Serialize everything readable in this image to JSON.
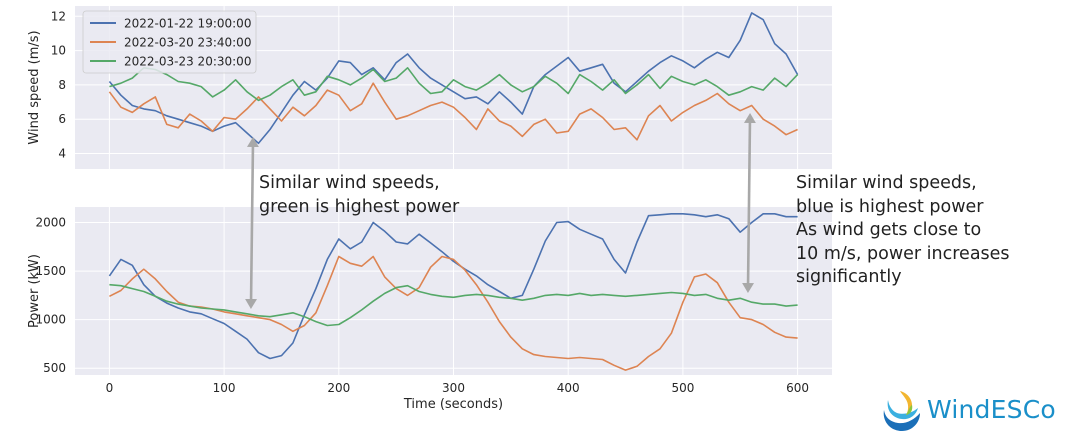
{
  "chart_data": [
    {
      "type": "line",
      "panel": "top",
      "xlabel": "",
      "ylabel": "Wind speed (m/s)",
      "xlim": [
        -30,
        630
      ],
      "ylim": [
        3.1,
        12.6
      ],
      "yticks": [
        4,
        6,
        8,
        10,
        12
      ],
      "grid": true,
      "legend": "top-left",
      "series": [
        {
          "name": "2022-01-22 19:00:00",
          "color": "#4c72b0",
          "x": [
            0,
            10,
            20,
            30,
            40,
            50,
            60,
            70,
            80,
            90,
            100,
            110,
            120,
            130,
            140,
            150,
            160,
            170,
            180,
            190,
            200,
            210,
            220,
            230,
            240,
            250,
            260,
            270,
            280,
            290,
            300,
            310,
            320,
            330,
            340,
            350,
            360,
            370,
            380,
            390,
            400,
            410,
            420,
            430,
            440,
            450,
            460,
            470,
            480,
            490,
            500,
            510,
            520,
            530,
            540,
            550,
            560,
            570,
            580,
            590,
            600
          ],
          "y": [
            8.2,
            7.4,
            6.8,
            6.6,
            6.5,
            6.2,
            6.0,
            5.8,
            5.6,
            5.3,
            5.6,
            5.8,
            5.2,
            4.6,
            5.4,
            6.4,
            7.4,
            8.2,
            7.7,
            8.4,
            9.4,
            9.3,
            8.6,
            9.0,
            8.3,
            9.3,
            9.8,
            9.0,
            8.4,
            8.0,
            7.6,
            7.2,
            7.3,
            6.9,
            7.6,
            7.0,
            6.3,
            7.9,
            8.6,
            9.1,
            9.6,
            8.8,
            9.0,
            9.2,
            8.1,
            7.6,
            8.2,
            8.8,
            9.3,
            9.7,
            9.4,
            9.0,
            9.5,
            9.9,
            9.6,
            10.6,
            12.2,
            11.8,
            10.4,
            9.8,
            8.6
          ]
        },
        {
          "name": "2022-03-20 23:40:00",
          "color": "#dd8452",
          "x": [
            0,
            10,
            20,
            30,
            40,
            50,
            60,
            70,
            80,
            90,
            100,
            110,
            120,
            130,
            140,
            150,
            160,
            170,
            180,
            190,
            200,
            210,
            220,
            230,
            240,
            250,
            260,
            270,
            280,
            290,
            300,
            310,
            320,
            330,
            340,
            350,
            360,
            370,
            380,
            390,
            400,
            410,
            420,
            430,
            440,
            450,
            460,
            470,
            480,
            490,
            500,
            510,
            520,
            530,
            540,
            550,
            560,
            570,
            580,
            590,
            600
          ],
          "y": [
            7.6,
            6.7,
            6.4,
            6.9,
            7.3,
            5.7,
            5.5,
            6.3,
            5.9,
            5.3,
            6.1,
            6.0,
            6.6,
            7.3,
            6.6,
            5.9,
            6.7,
            6.2,
            6.8,
            7.7,
            7.4,
            6.5,
            6.9,
            8.1,
            7.0,
            6.0,
            6.2,
            6.5,
            6.8,
            7.0,
            6.7,
            6.1,
            5.4,
            6.6,
            5.9,
            5.6,
            5.0,
            5.7,
            6.0,
            5.2,
            5.3,
            6.3,
            6.6,
            6.1,
            5.4,
            5.5,
            4.8,
            6.2,
            6.8,
            5.9,
            6.4,
            6.8,
            7.1,
            7.5,
            6.9,
            6.5,
            6.8,
            6.0,
            5.6,
            5.1,
            5.4
          ]
        },
        {
          "name": "2022-03-23 20:30:00",
          "color": "#55a868",
          "x": [
            0,
            10,
            20,
            30,
            40,
            50,
            60,
            70,
            80,
            90,
            100,
            110,
            120,
            130,
            140,
            150,
            160,
            170,
            180,
            190,
            200,
            210,
            220,
            230,
            240,
            250,
            260,
            270,
            280,
            290,
            300,
            310,
            320,
            330,
            340,
            350,
            360,
            370,
            380,
            390,
            400,
            410,
            420,
            430,
            440,
            450,
            460,
            470,
            480,
            490,
            500,
            510,
            520,
            530,
            540,
            550,
            560,
            570,
            580,
            590,
            600
          ],
          "y": [
            7.9,
            8.1,
            8.4,
            9.0,
            8.9,
            8.6,
            8.2,
            8.1,
            7.9,
            7.3,
            7.7,
            8.3,
            7.6,
            7.1,
            7.4,
            7.9,
            8.3,
            7.4,
            7.6,
            8.5,
            8.3,
            8.0,
            8.4,
            8.9,
            8.2,
            8.4,
            9.0,
            8.1,
            7.5,
            7.6,
            8.3,
            7.9,
            7.7,
            8.1,
            8.6,
            8.0,
            7.6,
            7.9,
            8.5,
            8.1,
            7.5,
            8.6,
            8.2,
            7.7,
            8.3,
            7.5,
            8.0,
            8.6,
            7.8,
            8.5,
            8.2,
            8.0,
            8.3,
            7.9,
            7.4,
            7.6,
            7.9,
            7.7,
            8.4,
            7.9,
            8.6
          ]
        }
      ]
    },
    {
      "type": "line",
      "panel": "bottom",
      "xlabel": "Time (seconds)",
      "ylabel": "Power (kW)",
      "xlim": [
        -30,
        630
      ],
      "ylim": [
        430,
        2160
      ],
      "xticks": [
        0,
        100,
        200,
        300,
        400,
        500,
        600
      ],
      "yticks": [
        500,
        1000,
        1500,
        2000
      ],
      "grid": true,
      "series": [
        {
          "name": "2022-01-22 19:00:00",
          "color": "#4c72b0",
          "x": [
            0,
            10,
            20,
            30,
            40,
            50,
            60,
            70,
            80,
            90,
            100,
            110,
            120,
            130,
            140,
            150,
            160,
            170,
            180,
            190,
            200,
            210,
            220,
            230,
            240,
            250,
            260,
            270,
            280,
            290,
            300,
            310,
            320,
            330,
            340,
            350,
            360,
            370,
            380,
            390,
            400,
            410,
            420,
            430,
            440,
            450,
            460,
            470,
            480,
            490,
            500,
            510,
            520,
            530,
            540,
            550,
            560,
            570,
            580,
            590,
            600
          ],
          "y": [
            1450,
            1620,
            1560,
            1360,
            1240,
            1170,
            1120,
            1080,
            1060,
            1010,
            960,
            880,
            800,
            660,
            600,
            630,
            760,
            1050,
            1320,
            1620,
            1830,
            1730,
            1800,
            2000,
            1910,
            1800,
            1780,
            1880,
            1790,
            1700,
            1600,
            1520,
            1450,
            1360,
            1290,
            1220,
            1250,
            1520,
            1810,
            2000,
            2010,
            1930,
            1880,
            1830,
            1620,
            1480,
            1800,
            2070,
            2080,
            2090,
            2090,
            2080,
            2060,
            2080,
            2040,
            1900,
            2000,
            2090,
            2090,
            2060,
            2060
          ]
        },
        {
          "name": "2022-03-20 23:40:00",
          "color": "#dd8452",
          "x": [
            0,
            10,
            20,
            30,
            40,
            50,
            60,
            70,
            80,
            90,
            100,
            110,
            120,
            130,
            140,
            150,
            160,
            170,
            180,
            190,
            200,
            210,
            220,
            230,
            240,
            250,
            260,
            270,
            280,
            290,
            300,
            310,
            320,
            330,
            340,
            350,
            360,
            370,
            380,
            390,
            400,
            410,
            420,
            430,
            440,
            450,
            460,
            470,
            480,
            490,
            500,
            510,
            520,
            530,
            540,
            550,
            560,
            570,
            580,
            590,
            600
          ],
          "y": [
            1240,
            1300,
            1420,
            1520,
            1420,
            1290,
            1180,
            1140,
            1130,
            1110,
            1080,
            1060,
            1040,
            1020,
            1000,
            950,
            880,
            940,
            1070,
            1350,
            1650,
            1580,
            1550,
            1650,
            1440,
            1320,
            1250,
            1330,
            1540,
            1650,
            1620,
            1510,
            1360,
            1180,
            980,
            820,
            700,
            640,
            620,
            610,
            600,
            610,
            600,
            590,
            530,
            480,
            520,
            620,
            700,
            860,
            1180,
            1440,
            1470,
            1380,
            1180,
            1020,
            1000,
            950,
            870,
            820,
            810
          ]
        },
        {
          "name": "2022-03-23 20:30:00",
          "color": "#55a868",
          "x": [
            0,
            10,
            20,
            30,
            40,
            50,
            60,
            70,
            80,
            90,
            100,
            110,
            120,
            130,
            140,
            150,
            160,
            170,
            180,
            190,
            200,
            210,
            220,
            230,
            240,
            250,
            260,
            270,
            280,
            290,
            300,
            310,
            320,
            330,
            340,
            350,
            360,
            370,
            380,
            390,
            400,
            410,
            420,
            430,
            440,
            450,
            460,
            470,
            480,
            490,
            500,
            510,
            520,
            530,
            540,
            550,
            560,
            570,
            580,
            590,
            600
          ],
          "y": [
            1360,
            1350,
            1320,
            1290,
            1240,
            1190,
            1160,
            1140,
            1120,
            1110,
            1100,
            1080,
            1060,
            1040,
            1030,
            1050,
            1070,
            1030,
            980,
            940,
            950,
            1020,
            1100,
            1190,
            1270,
            1330,
            1350,
            1290,
            1260,
            1240,
            1230,
            1250,
            1260,
            1250,
            1230,
            1220,
            1200,
            1220,
            1250,
            1260,
            1250,
            1270,
            1250,
            1260,
            1250,
            1240,
            1250,
            1260,
            1270,
            1280,
            1270,
            1250,
            1260,
            1220,
            1200,
            1220,
            1180,
            1160,
            1160,
            1140,
            1150
          ]
        }
      ]
    }
  ],
  "annotations": {
    "left": [
      "Similar wind speeds,",
      "green is highest power"
    ],
    "right": [
      "Similar wind speeds,",
      "blue is highest power",
      "As wind gets close to",
      "10 m/s, power increases",
      "significantly"
    ]
  },
  "logo": {
    "text": "WindESCo",
    "icon": "windesco-swirl-logo-icon",
    "color": "#1a8fc9"
  }
}
